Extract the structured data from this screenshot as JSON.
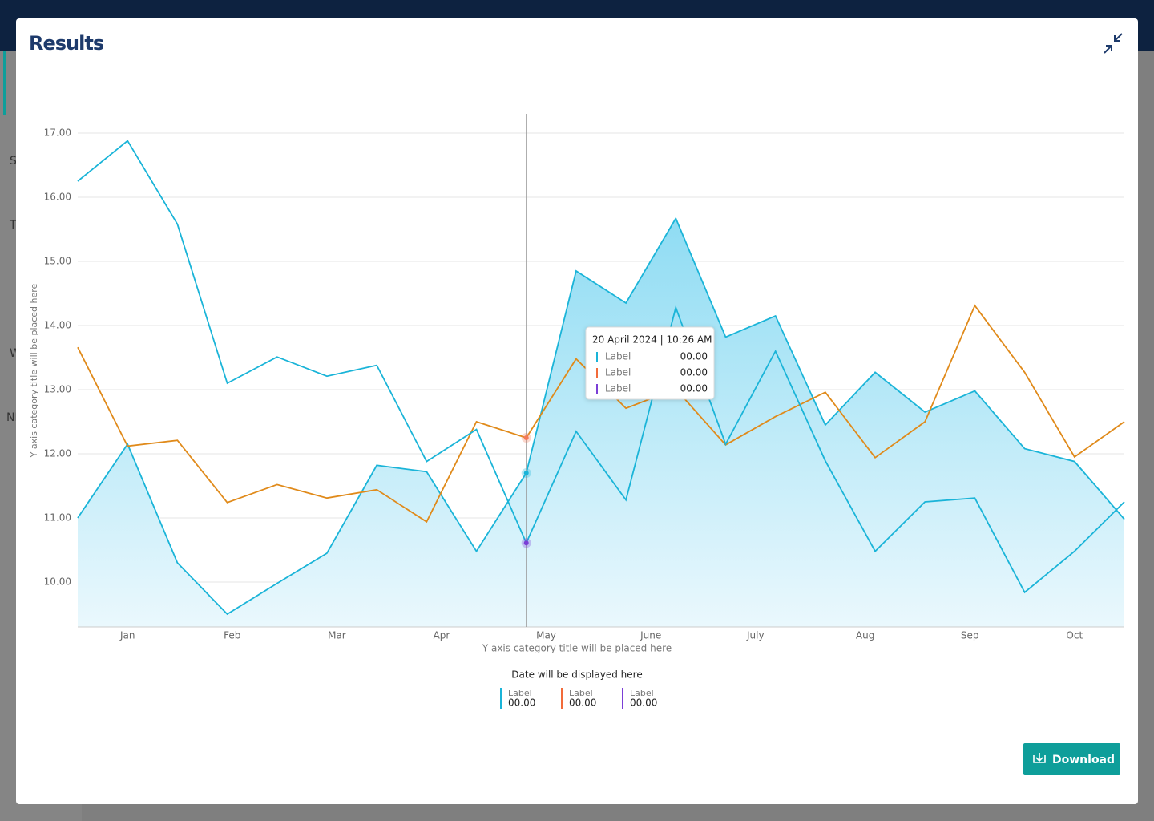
{
  "backdrop": {
    "labels": [
      "S",
      "T",
      "W",
      "NI"
    ]
  },
  "header": {
    "title": "Results"
  },
  "chart_data": {
    "type": "line",
    "y_label": "Y axis category title will be placed here",
    "x_label": "Y axis category title will be placed here",
    "x": [
      0,
      1,
      2,
      3,
      4,
      5,
      6,
      7,
      8,
      9,
      10,
      11,
      12,
      13,
      14,
      15,
      16,
      17,
      18,
      19,
      20,
      21
    ],
    "xlim": [
      0,
      21
    ],
    "xticks": [
      {
        "value": 1.0,
        "label": "Jan"
      },
      {
        "value": 3.1,
        "label": "Feb"
      },
      {
        "value": 5.2,
        "label": "Mar"
      },
      {
        "value": 7.3,
        "label": "Apr"
      },
      {
        "value": 9.4,
        "label": "May"
      },
      {
        "value": 11.5,
        "label": "June"
      },
      {
        "value": 13.6,
        "label": "July"
      },
      {
        "value": 15.8,
        "label": "Aug"
      },
      {
        "value": 17.9,
        "label": "Sep"
      },
      {
        "value": 20.0,
        "label": "Oct"
      }
    ],
    "ylim": [
      9.3,
      17.3
    ],
    "yticks": [
      {
        "value": 10,
        "label": "10.00"
      },
      {
        "value": 11,
        "label": "11.00"
      },
      {
        "value": 12,
        "label": "12.00"
      },
      {
        "value": 13,
        "label": "13.00"
      },
      {
        "value": 14,
        "label": "14.00"
      },
      {
        "value": 15,
        "label": "15.00"
      },
      {
        "value": 16,
        "label": "16.00"
      },
      {
        "value": 17,
        "label": "17.00"
      }
    ],
    "grid": true,
    "hover_index": 9,
    "series": [
      {
        "color": "#1ab4d8",
        "fill": true,
        "hover_color": "#1ab4d8",
        "values": [
          11.0,
          12.15,
          10.3,
          9.5,
          9.98,
          10.45,
          11.82,
          11.72,
          10.48,
          11.7,
          14.85,
          14.35,
          15.67,
          13.82,
          14.15,
          12.45,
          13.27,
          12.65,
          12.98,
          12.08,
          11.88,
          10.98
        ]
      },
      {
        "color": "#e08a1a",
        "fill": false,
        "hover_color": "#f27a5a",
        "values": [
          13.66,
          12.12,
          12.21,
          11.24,
          11.52,
          11.31,
          11.44,
          10.94,
          12.5,
          12.25,
          13.48,
          12.71,
          13.01,
          12.14,
          12.58,
          12.96,
          11.94,
          12.5,
          14.31,
          13.27,
          11.95,
          12.5
        ]
      },
      {
        "color": "#1ab4d8",
        "fill": false,
        "hover_color": "#7b3fd6",
        "values": [
          16.25,
          16.88,
          15.58,
          13.1,
          13.51,
          13.21,
          13.38,
          11.88,
          12.38,
          10.61,
          12.35,
          11.28,
          14.28,
          12.15,
          13.6,
          11.89,
          10.48,
          11.25,
          11.31,
          9.84,
          10.48,
          11.25
        ]
      }
    ],
    "tooltip": {
      "date": "20 April 2024 | 10:26 AM",
      "rows": [
        {
          "label": "Label",
          "value": "00.00",
          "color": "#1ab4d8"
        },
        {
          "label": "Label",
          "value": "00.00",
          "color": "#f26b3a"
        },
        {
          "label": "Label",
          "value": "00.00",
          "color": "#7b3fd6"
        }
      ]
    },
    "legend": {
      "title": "Date will be displayed here",
      "items": [
        {
          "label": "Label",
          "value": "00.00",
          "color": "#1ab4d8"
        },
        {
          "label": "Label",
          "value": "00.00",
          "color": "#f26b3a"
        },
        {
          "label": "Label",
          "value": "00.00",
          "color": "#7b3fd6"
        }
      ]
    }
  },
  "button": {
    "label": "Download"
  }
}
